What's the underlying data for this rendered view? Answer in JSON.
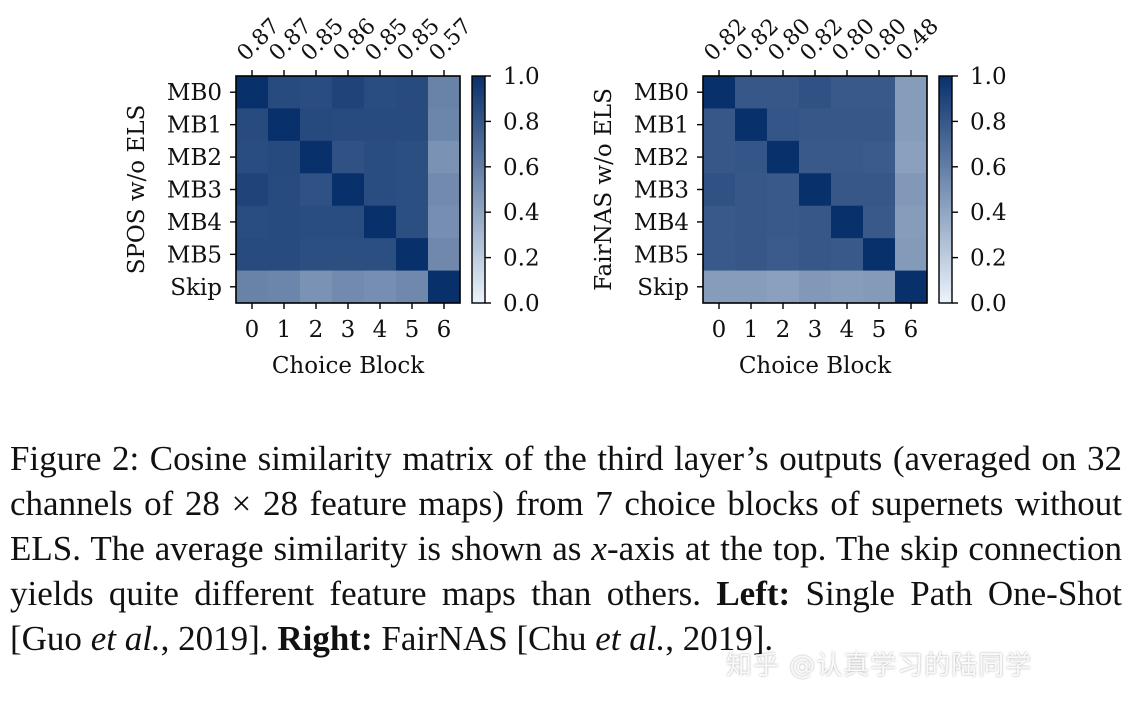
{
  "figure": {
    "chart_data": [
      {
        "type": "heatmap",
        "name": "left",
        "ylabel": "SPOS w/o ELS",
        "xlabel": "Choice Block",
        "row_labels": [
          "MB0",
          "MB1",
          "MB2",
          "MB3",
          "MB4",
          "MB5",
          "Skip"
        ],
        "col_labels": [
          "0",
          "1",
          "2",
          "3",
          "4",
          "5",
          "6"
        ],
        "top_labels": [
          "0.87",
          "0.87",
          "0.85",
          "0.86",
          "0.85",
          "0.85",
          "0.57"
        ],
        "colorbar": {
          "min": 0.0,
          "max": 1.0,
          "ticks": [
            "1.0",
            "0.8",
            "0.6",
            "0.4",
            "0.2",
            "0.0"
          ]
        },
        "values": [
          [
            1.0,
            0.86,
            0.85,
            0.9,
            0.85,
            0.86,
            0.58
          ],
          [
            0.86,
            1.0,
            0.87,
            0.86,
            0.86,
            0.86,
            0.56
          ],
          [
            0.85,
            0.87,
            1.0,
            0.83,
            0.85,
            0.84,
            0.5
          ],
          [
            0.9,
            0.86,
            0.83,
            1.0,
            0.85,
            0.84,
            0.54
          ],
          [
            0.85,
            0.86,
            0.85,
            0.85,
            1.0,
            0.84,
            0.52
          ],
          [
            0.86,
            0.86,
            0.84,
            0.84,
            0.84,
            1.0,
            0.55
          ],
          [
            0.58,
            0.56,
            0.5,
            0.54,
            0.52,
            0.55,
            1.0
          ]
        ]
      },
      {
        "type": "heatmap",
        "name": "right",
        "ylabel": "FairNAS w/o ELS",
        "xlabel": "Choice Block",
        "row_labels": [
          "MB0",
          "MB1",
          "MB2",
          "MB3",
          "MB4",
          "MB5",
          "Skip"
        ],
        "col_labels": [
          "0",
          "1",
          "2",
          "3",
          "4",
          "5",
          "6"
        ],
        "top_labels": [
          "0.82",
          "0.82",
          "0.80",
          "0.82",
          "0.80",
          "0.80",
          "0.48"
        ],
        "colorbar": {
          "min": 0.0,
          "max": 1.0,
          "ticks": [
            "1.0",
            "0.8",
            "0.6",
            "0.4",
            "0.2",
            "0.0"
          ]
        },
        "values": [
          [
            1.0,
            0.8,
            0.8,
            0.83,
            0.79,
            0.79,
            0.45
          ],
          [
            0.8,
            1.0,
            0.81,
            0.8,
            0.8,
            0.8,
            0.45
          ],
          [
            0.8,
            0.81,
            1.0,
            0.79,
            0.79,
            0.78,
            0.43
          ],
          [
            0.83,
            0.8,
            0.79,
            1.0,
            0.8,
            0.8,
            0.47
          ],
          [
            0.79,
            0.8,
            0.79,
            0.8,
            1.0,
            0.79,
            0.45
          ],
          [
            0.79,
            0.8,
            0.78,
            0.8,
            0.79,
            1.0,
            0.46
          ],
          [
            0.45,
            0.45,
            0.43,
            0.47,
            0.45,
            0.46,
            1.0
          ]
        ]
      }
    ]
  },
  "caption": {
    "prefix": "Figure 2: Cosine similarity matrix of the third layer’s outputs (averaged on 32 channels of 28 × 28 feature maps) from 7 choice blocks of supernets without ELS. The average similarity is shown as ",
    "x_var": "x",
    "suffix": "-axis at the top. The skip connection yields quite different feature maps than others. ",
    "left_label": "Left:",
    "left_text": " Single Path One-Shot [Guo ",
    "etal_1": "et al.",
    "left_year": ", 2019]. ",
    "right_label": "Right:",
    "right_text": " FairNAS [Chu ",
    "etal_2": "et al.",
    "right_year": ", 2019]."
  },
  "watermark": "知乎 @认真学习的陆同学"
}
